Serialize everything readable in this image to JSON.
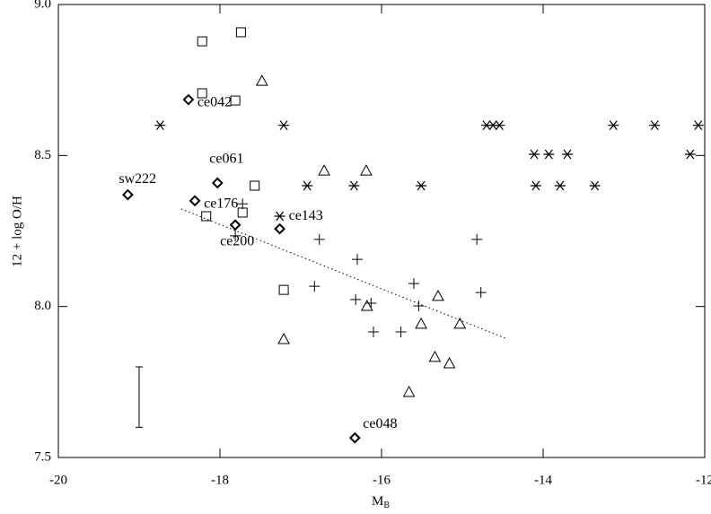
{
  "chart_data": {
    "type": "scatter",
    "x_label": "M",
    "x_label_sub": "B",
    "y_label": "12 + log O/H",
    "xlim": [
      -20,
      -12
    ],
    "ylim": [
      7.5,
      9.0
    ],
    "xticks": [
      -20,
      -18,
      -16,
      -14,
      -12
    ],
    "yticks": [
      7.5,
      {
        "value": 8.0,
        "label": "8.0"
      },
      8.5,
      {
        "value": 9.0,
        "label": "9.0"
      }
    ],
    "color": "#000000",
    "series": [
      {
        "marker": "square",
        "x": [
          -18.22,
          -17.74,
          -18.22,
          -17.81,
          -17.57,
          -18.17,
          -17.72,
          -17.21
        ],
        "values": [
          8.878,
          8.908,
          8.706,
          8.682,
          8.4,
          8.299,
          8.311,
          8.055
        ]
      },
      {
        "marker": "triangle",
        "x": [
          -17.48,
          -16.71,
          -16.19,
          -16.18,
          -15.51,
          -15.3,
          -15.03,
          -17.21,
          -15.66,
          -15.34,
          -15.16
        ],
        "values": [
          8.747,
          8.45,
          8.45,
          8.002,
          7.943,
          8.035,
          7.943,
          7.892,
          7.717,
          7.833,
          7.812
        ]
      },
      {
        "marker": "asterisk",
        "x": [
          -18.74,
          -17.21,
          -14.7,
          -14.62,
          -14.54,
          -13.13,
          -12.62,
          -12.08,
          -14.11,
          -13.93,
          -13.7,
          -12.18,
          -16.92,
          -16.34,
          -15.51,
          -14.09,
          -13.79,
          -13.36,
          -17.26
        ],
        "values": [
          8.6,
          8.6,
          8.6,
          8.6,
          8.6,
          8.6,
          8.6,
          8.6,
          8.504,
          8.504,
          8.504,
          8.504,
          8.4,
          8.4,
          8.4,
          8.4,
          8.4,
          8.4,
          8.299
        ]
      },
      {
        "marker": "plus",
        "x": [
          -17.72,
          -17.81,
          -16.77,
          -16.3,
          -16.83,
          -16.32,
          -16.13,
          -15.6,
          -15.54,
          -16.1,
          -15.76,
          -14.82,
          -14.77
        ],
        "values": [
          8.34,
          8.234,
          8.222,
          8.156,
          8.067,
          8.023,
          8.011,
          8.076,
          8.002,
          7.916,
          7.916,
          8.222,
          8.046
        ]
      },
      {
        "marker": "diamond",
        "x": [
          -19.14,
          -18.39,
          -18.03,
          -18.31,
          -17.81,
          -17.26,
          -16.33
        ],
        "values": [
          8.37,
          8.685,
          8.409,
          8.35,
          8.27,
          8.257,
          7.565
        ],
        "labels": [
          "sw222",
          "ce042",
          "ce061",
          "ce176",
          "ce200",
          "ce143",
          "ce048"
        ]
      },
      {
        "marker": "dotted-line",
        "x": [
          -18.48,
          -14.44
        ],
        "values": [
          8.323,
          7.892
        ]
      }
    ],
    "error_bar": {
      "x": -19.0,
      "low": 7.6,
      "high": 7.8
    }
  }
}
